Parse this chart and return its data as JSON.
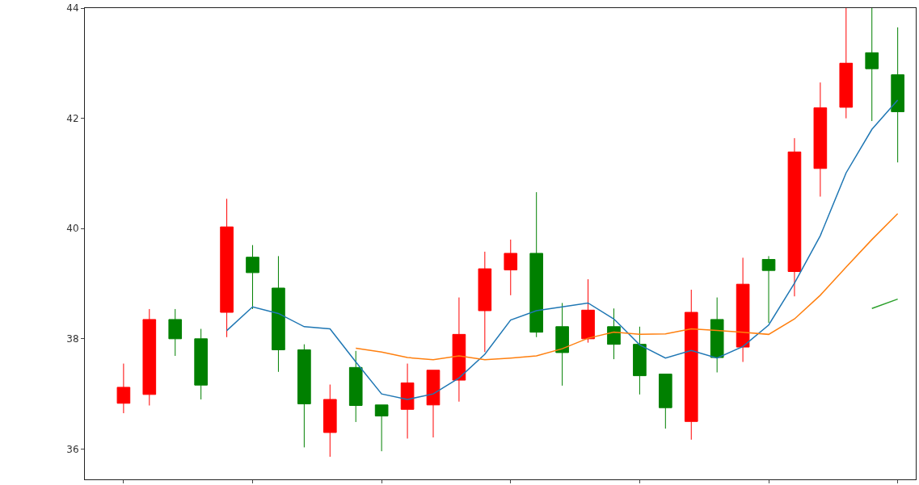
{
  "chart_data": {
    "type": "candlestick",
    "categories": [
      null,
      null,
      null,
      null,
      null,
      null,
      null,
      null,
      null,
      null,
      null,
      null,
      null,
      null,
      null,
      null,
      null,
      null,
      null,
      null,
      null,
      null,
      null,
      null,
      null,
      null,
      null,
      null,
      null,
      null,
      null
    ],
    "ohlc": [
      [
        36.83,
        37.55,
        36.65,
        37.12
      ],
      [
        36.99,
        38.54,
        36.79,
        38.35
      ],
      [
        38.35,
        38.54,
        37.69,
        38.0
      ],
      [
        38.0,
        38.18,
        36.9,
        37.16
      ],
      [
        38.48,
        40.54,
        38.03,
        40.03
      ],
      [
        39.48,
        39.7,
        38.54,
        39.2
      ],
      [
        38.92,
        39.5,
        37.4,
        37.8
      ],
      [
        37.8,
        37.9,
        36.03,
        36.82
      ],
      [
        36.3,
        37.17,
        35.86,
        36.9
      ],
      [
        37.48,
        37.78,
        36.49,
        36.79
      ],
      [
        36.8,
        36.8,
        35.96,
        36.6
      ],
      [
        36.72,
        37.55,
        36.19,
        37.2
      ],
      [
        36.8,
        37.43,
        36.21,
        37.43
      ],
      [
        37.25,
        38.75,
        36.86,
        38.08
      ],
      [
        38.51,
        39.58,
        37.76,
        39.27
      ],
      [
        39.25,
        39.8,
        38.79,
        39.55
      ],
      [
        39.55,
        40.66,
        38.03,
        38.12
      ],
      [
        38.22,
        38.65,
        37.15,
        37.75
      ],
      [
        38.0,
        39.08,
        37.93,
        38.52
      ],
      [
        38.22,
        38.55,
        37.63,
        37.9
      ],
      [
        37.9,
        38.22,
        36.99,
        37.33
      ],
      [
        37.36,
        37.36,
        36.37,
        36.75
      ],
      [
        36.5,
        38.89,
        36.17,
        38.48
      ],
      [
        38.35,
        38.75,
        37.39,
        37.66
      ],
      [
        37.85,
        39.47,
        37.58,
        38.99
      ],
      [
        39.44,
        39.5,
        38.29,
        39.24
      ],
      [
        39.22,
        41.64,
        38.77,
        41.39
      ],
      [
        41.09,
        42.65,
        40.58,
        42.19
      ],
      [
        42.2,
        44.0,
        42.0,
        43.0
      ],
      [
        43.19,
        44.0,
        41.95,
        42.9
      ],
      [
        42.79,
        43.65,
        41.2,
        42.12
      ]
    ],
    "colors": [
      "#ff0000",
      "#ff0000",
      "#008000",
      "#008000",
      "#ff0000",
      "#008000",
      "#008000",
      "#008000",
      "#ff0000",
      "#008000",
      "#008000",
      "#ff0000",
      "#ff0000",
      "#ff0000",
      "#ff0000",
      "#ff0000",
      "#008000",
      "#008000",
      "#ff0000",
      "#008000",
      "#008000",
      "#008000",
      "#ff0000",
      "#008000",
      "#ff0000",
      "#008000",
      "#ff0000",
      "#ff0000",
      "#ff0000",
      "#008000",
      "#008000"
    ],
    "series": [
      {
        "type": "line",
        "color": "#1f77b4",
        "values": [
          null,
          null,
          null,
          null,
          38.15,
          38.58,
          38.46,
          38.22,
          38.18,
          37.58,
          37.0,
          36.9,
          37.0,
          37.29,
          37.72,
          38.34,
          38.51,
          38.58,
          38.65,
          38.36,
          37.89,
          37.65,
          37.79,
          37.65,
          37.86,
          38.25,
          39.01,
          39.87,
          41.01,
          41.8,
          42.33
        ]
      },
      {
        "type": "line",
        "color": "#ff7f0e",
        "values": [
          null,
          null,
          null,
          null,
          null,
          null,
          null,
          null,
          null,
          37.83,
          37.76,
          37.66,
          37.62,
          37.69,
          37.62,
          37.65,
          37.69,
          37.82,
          38.01,
          38.12,
          38.08,
          38.09,
          38.18,
          38.15,
          38.12,
          38.08,
          38.36,
          38.79,
          39.3,
          39.8,
          40.27
        ]
      },
      {
        "type": "line",
        "color": "#2ca02c",
        "values": [
          null,
          null,
          null,
          null,
          null,
          null,
          null,
          null,
          null,
          null,
          null,
          null,
          null,
          null,
          null,
          null,
          null,
          null,
          null,
          null,
          null,
          null,
          null,
          null,
          null,
          null,
          null,
          null,
          null,
          38.55,
          38.72
        ]
      }
    ],
    "ylim": [
      35.45,
      44.0
    ],
    "yticks": [
      36,
      38,
      40,
      42,
      44
    ],
    "tick_labels": "y"
  }
}
